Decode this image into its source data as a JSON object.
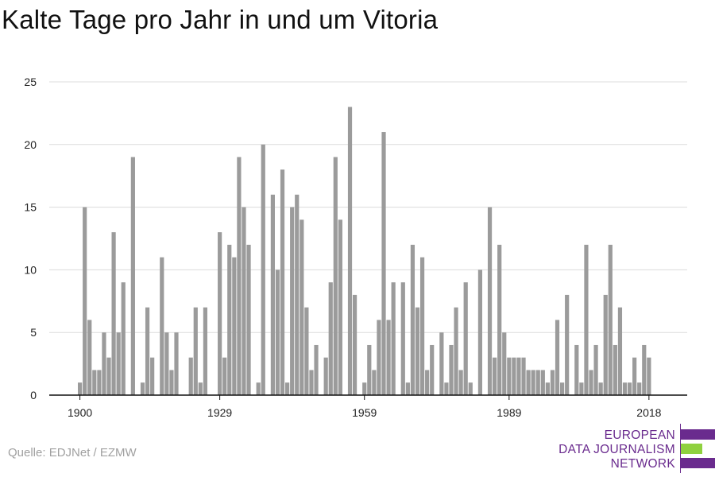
{
  "title": "Kalte Tage pro Jahr in und um Vitoria",
  "source": "Quelle: EDJNet / EZMW",
  "logo": {
    "line1": "EUROPEAN",
    "line2": "DATA JOURNALISM",
    "line3": "NETWORK",
    "colors": {
      "purple": "#6a2b8e",
      "green": "#8fd13f"
    }
  },
  "chart_data": {
    "type": "bar",
    "title": "Kalte Tage pro Jahr in und um Vitoria",
    "xlabel": "",
    "ylabel": "",
    "x_start": 1900,
    "x_end": 2018,
    "x_ticks": [
      1900,
      1929,
      1959,
      1989,
      2018
    ],
    "y_ticks": [
      0,
      5,
      10,
      15,
      20,
      25
    ],
    "ylim": [
      0,
      25
    ],
    "grid": true,
    "bar_color": "#9b9b9b",
    "values": [
      1,
      15,
      6,
      2,
      2,
      5,
      3,
      13,
      5,
      9,
      0,
      19,
      0,
      1,
      7,
      3,
      0,
      11,
      5,
      2,
      5,
      0,
      0,
      3,
      7,
      1,
      7,
      0,
      0,
      13,
      3,
      12,
      11,
      19,
      15,
      12,
      0,
      1,
      20,
      0,
      16,
      10,
      18,
      1,
      15,
      16,
      14,
      7,
      2,
      4,
      0,
      3,
      9,
      19,
      14,
      0,
      23,
      8,
      0,
      1,
      4,
      2,
      6,
      21,
      6,
      9,
      0,
      9,
      1,
      12,
      7,
      11,
      2,
      4,
      0,
      5,
      1,
      4,
      7,
      2,
      9,
      1,
      0,
      10,
      0,
      15,
      3,
      12,
      5,
      3,
      3,
      3,
      3,
      2,
      2,
      2,
      2,
      1,
      2,
      6,
      1,
      8,
      0,
      4,
      1,
      12,
      2,
      4,
      1,
      8,
      12,
      4,
      7,
      1,
      1,
      3,
      1,
      4,
      3
    ]
  }
}
